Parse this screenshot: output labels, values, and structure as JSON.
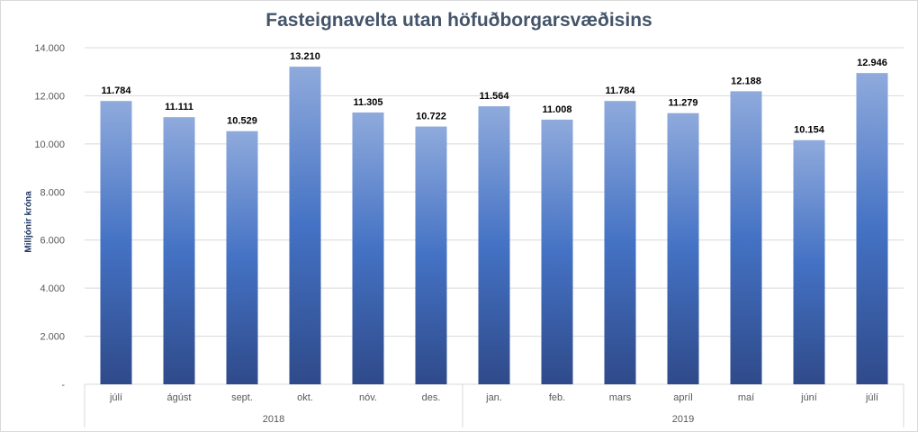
{
  "chart_data": {
    "type": "bar",
    "title": "Fasteignavelta utan höfuðborgarsvæðisins",
    "ylabel": "Milljónir króna",
    "xlabel": "",
    "ylim": [
      0,
      14000
    ],
    "yticks": [
      0,
      2000,
      4000,
      6000,
      8000,
      10000,
      12000,
      14000
    ],
    "ytick_labels": [
      "-",
      "2.000",
      "4.000",
      "6.000",
      "8.000",
      "10.000",
      "12.000",
      "14.000"
    ],
    "grid": true,
    "legend": "none",
    "categories": [
      "júlí",
      "ágúst",
      "sept.",
      "okt.",
      "nóv.",
      "des.",
      "jan.",
      "feb.",
      "mars",
      "apríl",
      "maí",
      "júní",
      "júlí"
    ],
    "values": [
      11784,
      11111,
      10529,
      13210,
      11305,
      10722,
      11564,
      11008,
      11784,
      11279,
      12188,
      10154,
      12946
    ],
    "value_labels": [
      "11.784",
      "11.111",
      "10.529",
      "13.210",
      "11.305",
      "10.722",
      "11.564",
      "11.008",
      "11.784",
      "11.279",
      "12.188",
      "10.154",
      "12.946"
    ],
    "groups": [
      {
        "label": "2018",
        "count": 6
      },
      {
        "label": "2019",
        "count": 7
      }
    ],
    "colors": {
      "bar_top": "#8faadc",
      "bar_mid": "#4472c4",
      "bar_bottom": "#2f4a8a",
      "grid": "#d9d9d9",
      "title": "#44546a"
    }
  }
}
